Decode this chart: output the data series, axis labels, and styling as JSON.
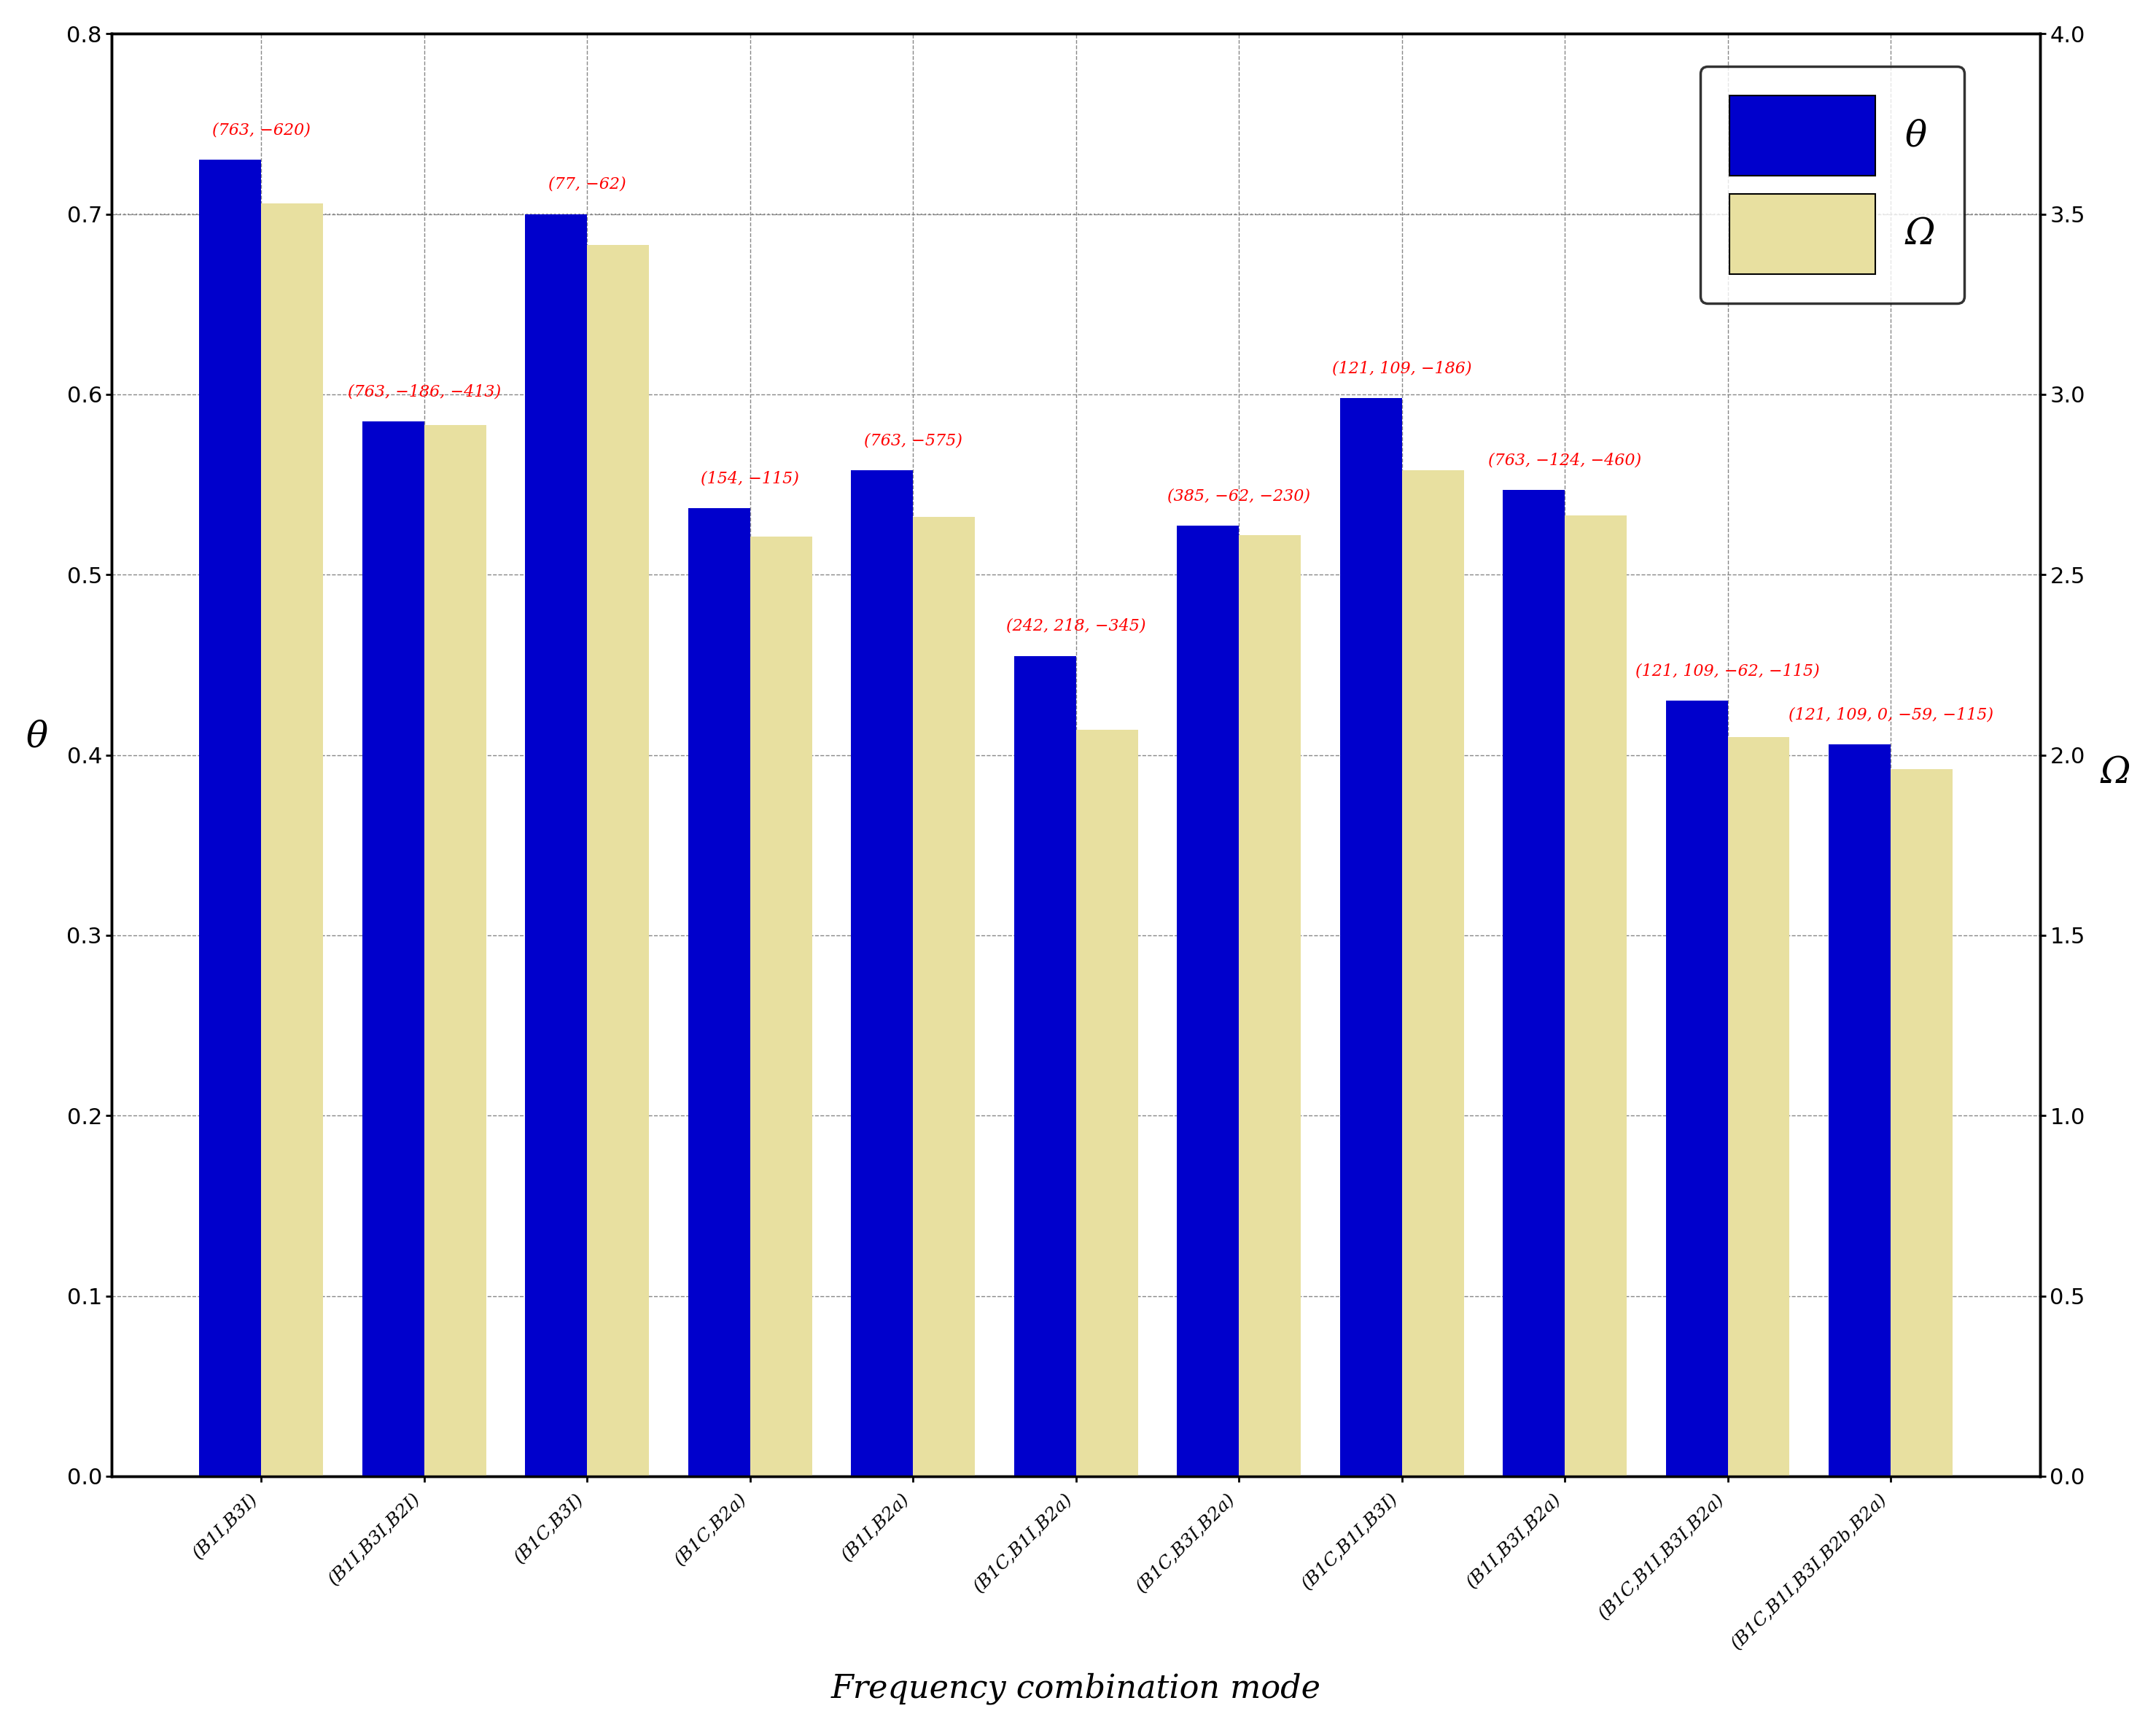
{
  "categories": [
    "(B1I,B3I)",
    "(B1I,B3I,B2I)",
    "(B1C,B3I)",
    "(B1C,B2a)",
    "(B1I,B2a)",
    "(B1C,B1I,B2a)",
    "(B1C,B3I,B2a)",
    "(B1C,B1I,B3I)",
    "(B1I,B3I,B2a)",
    "(B1C,B1I,B3I,B2a)",
    "(B1C,B1I,B3I,B2b,B2a)"
  ],
  "theta_values": [
    0.73,
    0.585,
    0.7,
    0.537,
    0.558,
    0.455,
    0.527,
    0.598,
    0.547,
    0.43,
    0.406
  ],
  "omega_values": [
    0.706,
    0.583,
    0.683,
    0.521,
    0.532,
    0.414,
    0.522,
    0.558,
    0.533,
    0.41,
    0.392
  ],
  "annotations": [
    "(763, −620)",
    "(763, −186, −413)",
    "(77, −62)",
    "(154, −115)",
    "(763, −575)",
    "(242, 218, −345)",
    "(385, −62, −230)",
    "(121, 109, −186)",
    "(763, −124, −460)",
    "(121, 109, −62, −115)",
    "(121, 109, 0, −59, −115)"
  ],
  "blue_color": "#0000CC",
  "yellow_color": "#E8E0A0",
  "bar_width": 0.38,
  "theta_ylim": [
    0.0,
    0.8
  ],
  "omega_ylim": [
    0.0,
    4.0
  ],
  "xlabel": "Frequency combination mode",
  "ylabel_left": "θ",
  "ylabel_right": "Ω",
  "legend_theta": "θ",
  "legend_omega": "Ω",
  "annotation_color": "red",
  "annotation_fontsize": 16,
  "tick_fontsize": 22,
  "label_fontsize": 36,
  "legend_fontsize": 36,
  "background_color": "white"
}
